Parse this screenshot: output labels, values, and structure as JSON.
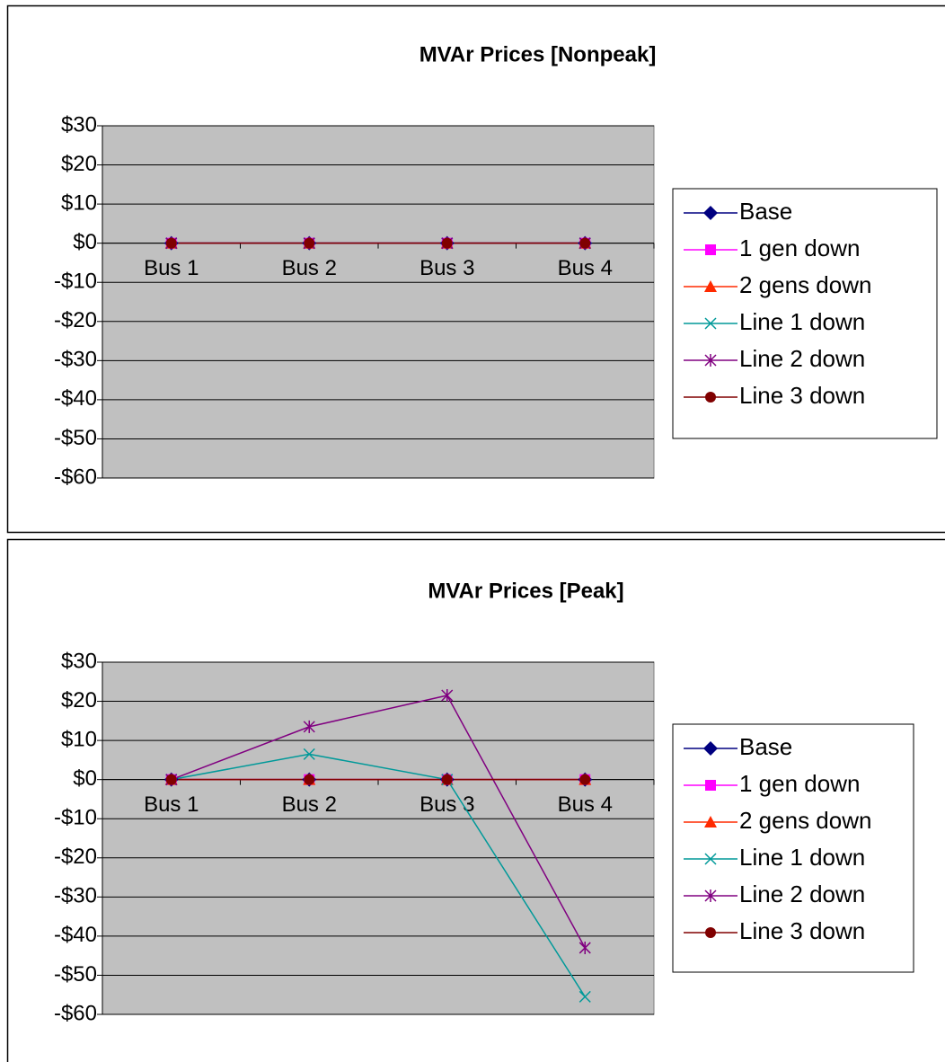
{
  "chart_data": [
    {
      "type": "line",
      "title": "MVAr Prices [Nonpeak]",
      "categories": [
        "Bus 1",
        "Bus 2",
        "Bus 3",
        "Bus 4"
      ],
      "ylim": [
        -60,
        30
      ],
      "yticks": [
        {
          "value": 30,
          "label": "$30"
        },
        {
          "value": 20,
          "label": "$20"
        },
        {
          "value": 10,
          "label": "$10"
        },
        {
          "value": 0,
          "label": "$0"
        },
        {
          "value": -10,
          "label": "-$10"
        },
        {
          "value": -20,
          "label": "-$20"
        },
        {
          "value": -30,
          "label": "-$30"
        },
        {
          "value": -40,
          "label": "-$40"
        },
        {
          "value": -50,
          "label": "-$50"
        },
        {
          "value": -60,
          "label": "-$60"
        }
      ],
      "grid": true,
      "legend": "right",
      "series": [
        {
          "name": "Base",
          "color": "#000080",
          "marker": "diamond",
          "values": [
            0,
            0,
            0,
            0
          ]
        },
        {
          "name": "1 gen down",
          "color": "#ff00ff",
          "marker": "square",
          "values": [
            0,
            0,
            0,
            0
          ]
        },
        {
          "name": "2 gens down",
          "color": "#ff2a00",
          "marker": "triangle",
          "values": [
            0,
            0,
            0,
            0
          ]
        },
        {
          "name": "Line 1 down",
          "color": "#009999",
          "marker": "x",
          "values": [
            0,
            0,
            0,
            0
          ]
        },
        {
          "name": "Line 2 down",
          "color": "#800080",
          "marker": "star",
          "values": [
            0,
            0,
            0,
            0
          ]
        },
        {
          "name": "Line 3 down",
          "color": "#800000",
          "marker": "circle",
          "values": [
            0,
            0,
            0,
            0
          ]
        }
      ]
    },
    {
      "type": "line",
      "title": "MVAr Prices [Peak]",
      "categories": [
        "Bus 1",
        "Bus 2",
        "Bus 3",
        "Bus 4"
      ],
      "ylim": [
        -60,
        30
      ],
      "yticks": [
        {
          "value": 30,
          "label": "$30"
        },
        {
          "value": 20,
          "label": "$20"
        },
        {
          "value": 10,
          "label": "$10"
        },
        {
          "value": 0,
          "label": "$0"
        },
        {
          "value": -10,
          "label": "-$10"
        },
        {
          "value": -20,
          "label": "-$20"
        },
        {
          "value": -30,
          "label": "-$30"
        },
        {
          "value": -40,
          "label": "-$40"
        },
        {
          "value": -50,
          "label": "-$50"
        },
        {
          "value": -60,
          "label": "-$60"
        }
      ],
      "grid": true,
      "legend": "right",
      "series": [
        {
          "name": "Base",
          "color": "#000080",
          "marker": "diamond",
          "values": [
            0,
            0,
            0,
            0
          ]
        },
        {
          "name": "1 gen down",
          "color": "#ff00ff",
          "marker": "square",
          "values": [
            0,
            0,
            0,
            0
          ]
        },
        {
          "name": "2 gens down",
          "color": "#ff2a00",
          "marker": "triangle",
          "values": [
            0,
            0,
            0,
            0
          ]
        },
        {
          "name": "Line 1 down",
          "color": "#009999",
          "marker": "x",
          "values": [
            0,
            6.5,
            0,
            -55.5
          ]
        },
        {
          "name": "Line 2 down",
          "color": "#800080",
          "marker": "star",
          "values": [
            0,
            13.5,
            21.5,
            -43
          ]
        },
        {
          "name": "Line 3 down",
          "color": "#800000",
          "marker": "circle",
          "values": [
            0,
            0,
            0,
            0
          ]
        }
      ]
    }
  ]
}
